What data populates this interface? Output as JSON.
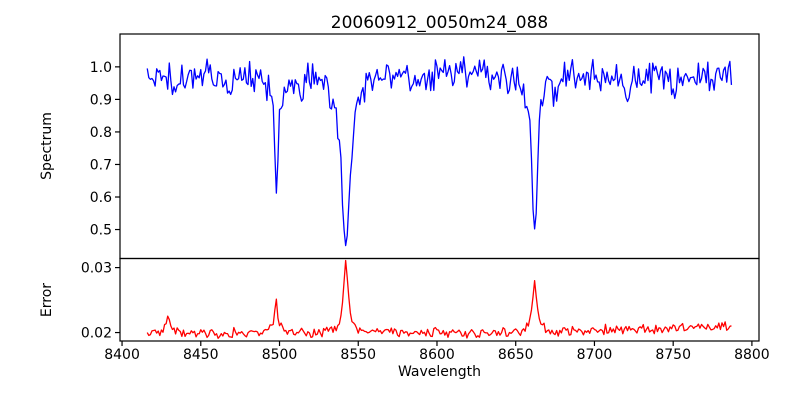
{
  "figure": {
    "background": "#ffffff",
    "frame_color": "#000000",
    "text_color": "#000000"
  },
  "chart_data": {
    "type": "line",
    "title": "20060912_0050m24_088",
    "xlabel": "Wavelength",
    "xlim": [
      8398.7,
      8804.5
    ],
    "x_ticks": [
      8400,
      8450,
      8500,
      8550,
      8600,
      8650,
      8700,
      8750,
      8800
    ],
    "x_data_range": [
      8416,
      8787
    ],
    "grid": false,
    "legend": null,
    "panels": [
      {
        "ylabel": "Spectrum",
        "ylim": [
          0.411,
          1.101
        ],
        "y_ticks": [
          1.0,
          0.9,
          0.8,
          0.7,
          0.6,
          0.5
        ],
        "tick_decimals": 1,
        "series": {
          "name": "spectrum",
          "color": "#0000ff",
          "x_step": 1,
          "continuum": {
            "base": 0.978,
            "curvature": -2.2e-07,
            "center": 8600
          },
          "absorption_lines": [
            {
              "center": 8498.0,
              "depth": 0.355,
              "half_width": 1.6
            },
            {
              "center": 8542.1,
              "depth": 0.535,
              "half_width": 3.4
            },
            {
              "center": 8662.1,
              "depth": 0.485,
              "half_width": 2.2
            },
            {
              "center": 8468.0,
              "depth": 0.055,
              "half_width": 1.4
            },
            {
              "center": 8514.0,
              "depth": 0.05,
              "half_width": 1.2
            },
            {
              "center": 8589.0,
              "depth": 0.055,
              "half_width": 1.4
            },
            {
              "center": 8634.0,
              "depth": 0.06,
              "half_width": 1.4
            },
            {
              "center": 8675.0,
              "depth": 0.07,
              "half_width": 1.6
            },
            {
              "center": 8721.0,
              "depth": 0.07,
              "half_width": 1.4
            },
            {
              "center": 8751.0,
              "depth": 0.06,
              "half_width": 1.4
            }
          ],
          "minimum_values": {
            "8498": 0.62,
            "8542": 0.44,
            "8662": 0.49
          },
          "noise_amp": 0.03,
          "noise_seed": 20060912
        }
      },
      {
        "ylabel": "Error",
        "ylim": [
          0.0187,
          0.0314
        ],
        "y_ticks": [
          0.03,
          0.02
        ],
        "tick_decimals": 2,
        "series": {
          "name": "error",
          "color": "#ff0000",
          "x_step": 1,
          "baseline": 0.0199,
          "tilt": {
            "start": 8650,
            "slope": 8e-06
          },
          "peaks": [
            {
              "center": 8429.0,
              "height": 0.0018,
              "half_width": 1.5
            },
            {
              "center": 8498.0,
              "height": 0.0048,
              "half_width": 1.3
            },
            {
              "center": 8542.1,
              "height": 0.0106,
              "half_width": 1.8
            },
            {
              "center": 8662.1,
              "height": 0.0075,
              "half_width": 1.8
            }
          ],
          "peak_values": {
            "8498": 0.0248,
            "8542": 0.0308,
            "8662": 0.0277
          },
          "noise_amp": 0.00045,
          "noise_seed": 50
        }
      }
    ]
  }
}
